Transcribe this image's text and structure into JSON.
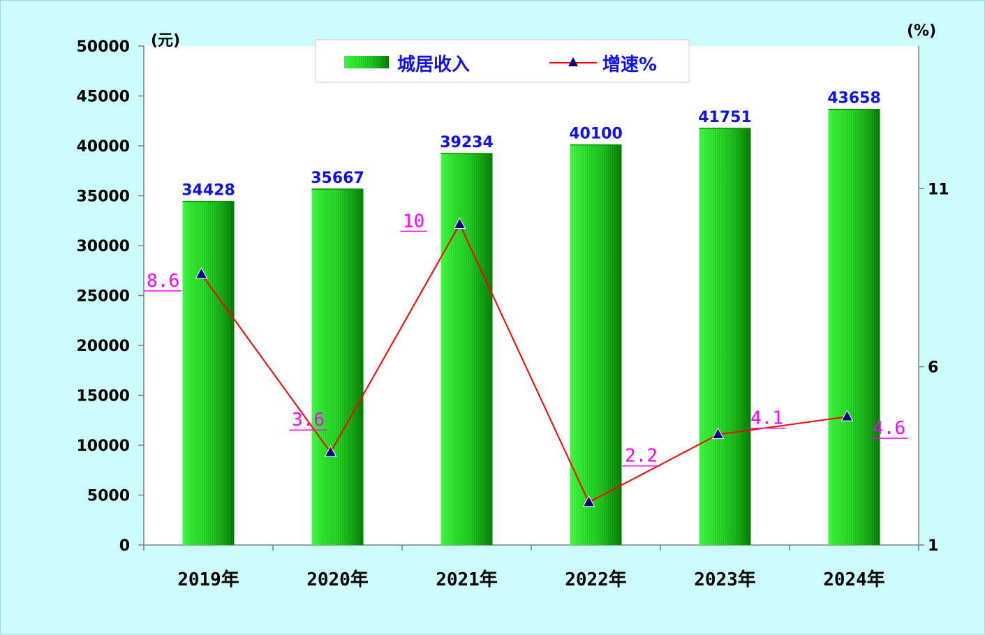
{
  "chart_data": {
    "type": "bar",
    "categories": [
      "2019年",
      "2020年",
      "2021年",
      "2022年",
      "2023年",
      "2024年"
    ],
    "series": [
      {
        "name": "城居收入",
        "type": "bar",
        "axis": "left",
        "values": [
          34428,
          35667,
          39234,
          40100,
          41751,
          43658
        ],
        "labels": [
          "34428",
          "35667",
          "39234",
          "40100",
          "41751",
          "43658"
        ]
      },
      {
        "name": "增速%",
        "type": "line",
        "axis": "right",
        "marker": "triangle",
        "values": [
          8.6,
          3.6,
          10,
          2.2,
          4.1,
          4.6
        ],
        "labels": [
          "8.6",
          "3.6",
          "10",
          "2.2",
          "4.1",
          "4.6"
        ]
      }
    ],
    "y_left": {
      "unit": "(元)",
      "min": 0,
      "max": 50000,
      "ticks": [
        "0",
        "5000",
        "10000",
        "15000",
        "20000",
        "25000",
        "30000",
        "35000",
        "40000",
        "45000",
        "50000"
      ]
    },
    "y_right": {
      "unit": "(%)",
      "min": 1,
      "max": 15,
      "ticks": [
        "1",
        "6",
        "11"
      ],
      "tick_values": [
        1,
        6,
        11
      ]
    },
    "legend": {
      "position": "top-center",
      "border": "#f0c0c0"
    },
    "grid": false,
    "colors": {
      "bar_light": "#33ff33",
      "bar_dark": "#008a00",
      "line": "#ff0000",
      "marker": "#000080",
      "bar_label": "#1010ee",
      "line_label": "#ff00ff",
      "background": "#ccfcfc",
      "plot_background": "#ffffff"
    }
  }
}
